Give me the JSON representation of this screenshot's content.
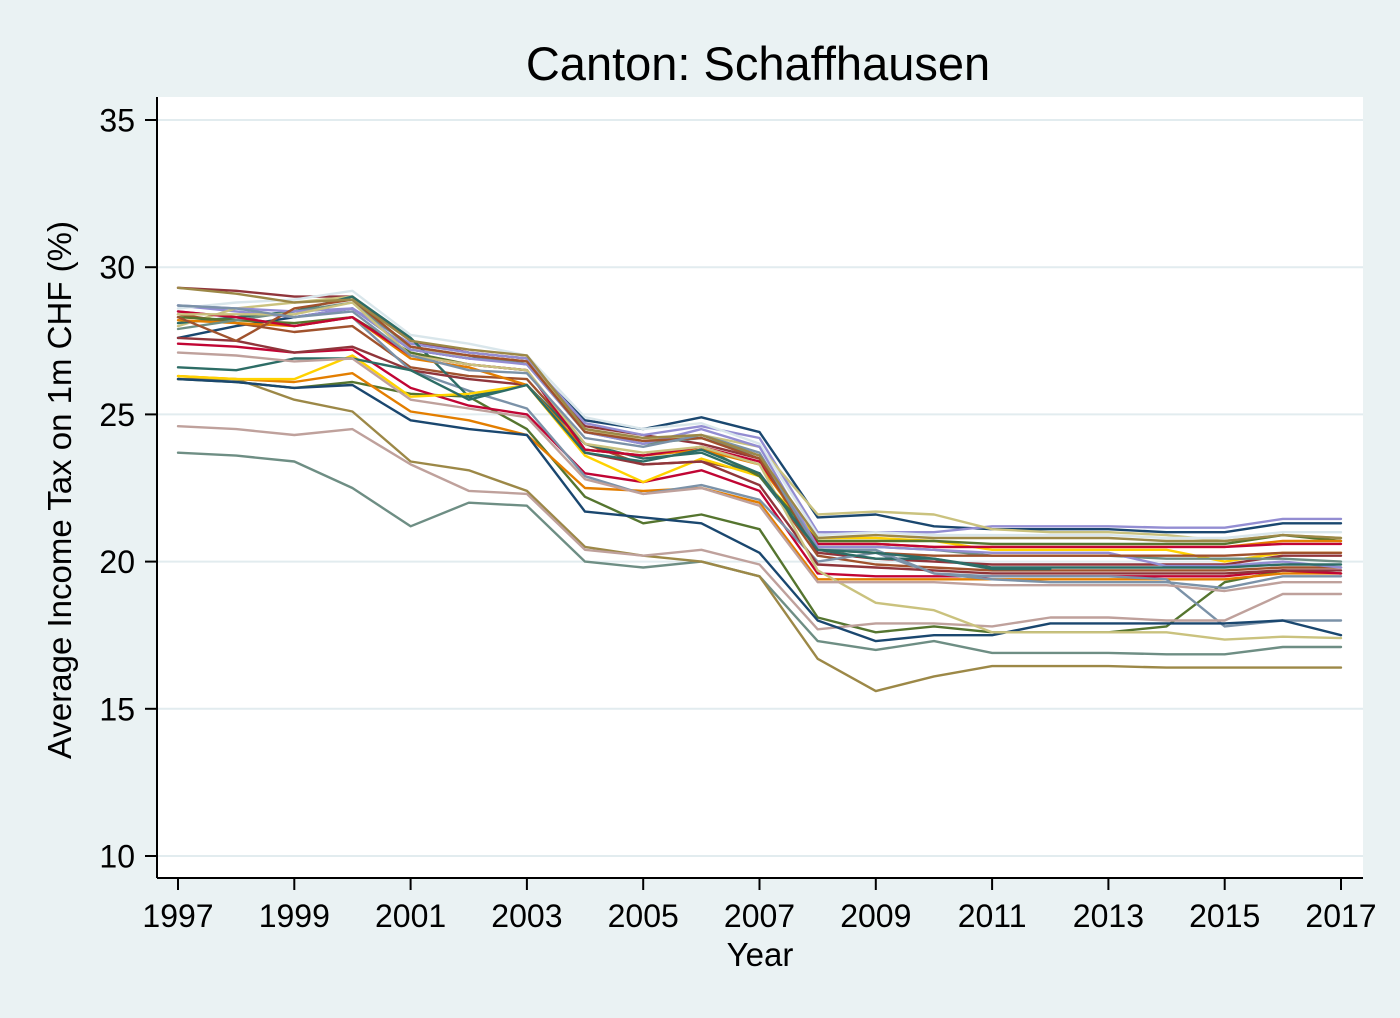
{
  "colors": {
    "graph_background": "#eaf2f3",
    "plot_background": "#ffffff",
    "title": "#1a476f",
    "gridline": "#e2ecef",
    "axis": "#000000"
  },
  "chart_data": {
    "type": "line",
    "title": "Canton: Schaffhausen",
    "xlabel": "Year",
    "ylabel": "Average Income Tax on 1m CHF (%)",
    "xlim": [
      1997,
      2017
    ],
    "ylim": [
      10,
      35
    ],
    "xticks": [
      1997,
      1999,
      2001,
      2003,
      2005,
      2007,
      2009,
      2011,
      2013,
      2015,
      2017
    ],
    "yticks": [
      10,
      15,
      20,
      25,
      30,
      35
    ],
    "grid": true,
    "legend": "none",
    "x": [
      1997,
      1998,
      1999,
      2000,
      2001,
      2002,
      2003,
      2004,
      2005,
      2006,
      2007,
      2008,
      2009,
      2010,
      2011,
      2012,
      2013,
      2014,
      2015,
      2016,
      2017
    ],
    "series": [
      {
        "color": "#1a476f",
        "values": [
          27.6,
          28.0,
          28.3,
          28.6,
          27.2,
          26.9,
          26.8,
          24.8,
          24.5,
          24.9,
          24.4,
          21.5,
          21.6,
          21.2,
          21.1,
          21.1,
          21.1,
          21.0,
          21.0,
          21.3,
          21.3
        ]
      },
      {
        "color": "#90353b",
        "values": [
          29.3,
          29.2,
          29.0,
          29.0,
          27.5,
          27.1,
          26.9,
          24.6,
          24.3,
          24.0,
          23.5,
          20.3,
          20.1,
          20.0,
          19.9,
          19.9,
          19.9,
          19.9,
          19.9,
          20.2,
          20.2
        ]
      },
      {
        "color": "#55752f",
        "values": [
          26.2,
          26.1,
          25.9,
          26.1,
          25.7,
          25.6,
          24.5,
          22.2,
          21.3,
          21.6,
          21.1,
          18.1,
          17.6,
          17.8,
          17.6,
          17.6,
          17.6,
          17.8,
          19.3,
          19.7,
          19.6
        ]
      },
      {
        "color": "#e37e00",
        "values": [
          26.3,
          26.2,
          26.1,
          26.4,
          25.1,
          24.8,
          24.3,
          22.5,
          22.4,
          22.5,
          22.0,
          19.4,
          19.4,
          19.4,
          19.4,
          19.4,
          19.4,
          19.4,
          19.4,
          19.6,
          19.6
        ]
      },
      {
        "color": "#6e8e84",
        "values": [
          23.7,
          23.6,
          23.4,
          22.5,
          21.2,
          22.0,
          21.9,
          20.0,
          19.8,
          20.0,
          19.5,
          17.3,
          17.0,
          17.3,
          16.9,
          16.9,
          16.9,
          16.85,
          16.85,
          17.1,
          17.1
        ]
      },
      {
        "color": "#c10534",
        "values": [
          27.4,
          27.3,
          27.1,
          27.2,
          25.9,
          25.3,
          25.0,
          23.0,
          22.7,
          23.1,
          22.4,
          19.6,
          19.5,
          19.5,
          19.5,
          19.5,
          19.5,
          19.5,
          19.5,
          19.7,
          19.6
        ]
      },
      {
        "color": "#938dd2",
        "values": [
          28.7,
          28.5,
          28.3,
          28.6,
          27.4,
          27.1,
          26.9,
          24.7,
          24.3,
          24.6,
          24.2,
          21.0,
          21.0,
          21.0,
          21.2,
          21.2,
          21.2,
          21.15,
          21.15,
          21.45,
          21.45
        ]
      },
      {
        "color": "#cac27e",
        "values": [
          28.0,
          28.6,
          28.8,
          29.0,
          27.2,
          27.0,
          26.8,
          24.5,
          24.1,
          24.3,
          23.9,
          21.6,
          21.7,
          21.6,
          21.1,
          21.0,
          21.0,
          20.9,
          20.7,
          20.9,
          20.8
        ]
      },
      {
        "color": "#a0522d",
        "values": [
          28.4,
          28.1,
          27.8,
          28.0,
          26.6,
          26.3,
          26.2,
          24.0,
          23.3,
          23.4,
          23.0,
          20.2,
          19.9,
          19.8,
          19.7,
          19.7,
          19.7,
          19.7,
          19.7,
          19.8,
          19.8
        ]
      },
      {
        "color": "#7b92a8",
        "values": [
          28.5,
          28.3,
          28.0,
          28.3,
          26.5,
          25.8,
          25.2,
          22.9,
          22.3,
          22.6,
          22.1,
          20.0,
          20.3,
          19.6,
          19.5,
          19.5,
          19.5,
          19.4,
          17.8,
          18.0,
          18.0
        ]
      },
      {
        "color": "#2d6d66",
        "values": [
          28.1,
          28.3,
          28.5,
          29.0,
          27.6,
          25.6,
          26.0,
          24.0,
          23.5,
          23.7,
          22.9,
          20.4,
          20.1,
          20.1,
          19.75,
          19.75,
          null,
          null,
          null,
          null,
          null
        ]
      },
      {
        "color": "#9c8847",
        "values": [
          26.2,
          26.2,
          25.5,
          25.1,
          23.4,
          23.1,
          22.4,
          20.5,
          20.2,
          20.0,
          19.5,
          16.7,
          15.6,
          16.1,
          16.45,
          16.45,
          16.45,
          16.4,
          16.4,
          16.4,
          16.4
        ]
      },
      {
        "color": "#bfa19c",
        "values": [
          24.6,
          24.5,
          24.3,
          24.5,
          23.3,
          22.4,
          22.3,
          20.4,
          20.2,
          20.4,
          19.9,
          17.7,
          17.9,
          17.9,
          17.8,
          18.1,
          18.1,
          18.0,
          18.0,
          18.9,
          18.9
        ]
      },
      {
        "color": "#ffd200",
        "values": [
          26.3,
          26.2,
          26.2,
          27.0,
          25.6,
          25.7,
          26.0,
          23.6,
          22.7,
          23.5,
          22.9,
          20.8,
          20.8,
          20.7,
          20.4,
          20.4,
          20.4,
          20.4,
          20.0,
          20.3,
          20.3
        ]
      },
      {
        "color": "#d9e6eb",
        "values": [
          28.6,
          28.8,
          28.9,
          29.2,
          27.7,
          27.4,
          27.0,
          24.9,
          24.5,
          24.7,
          24.0,
          20.9,
          21.0,
          20.9,
          20.9,
          20.9,
          20.9,
          20.8,
          20.8,
          21.0,
          21.0
        ]
      },
      {
        "color": "#1a476f",
        "values": [
          26.2,
          26.1,
          25.9,
          26.0,
          24.8,
          24.5,
          24.3,
          21.7,
          21.5,
          21.3,
          20.3,
          18.0,
          17.3,
          17.5,
          17.5,
          17.9,
          17.9,
          17.9,
          17.9,
          18.0,
          17.5
        ]
      },
      {
        "color": "#90353b",
        "values": [
          27.6,
          27.5,
          27.1,
          27.3,
          26.5,
          26.2,
          26.0,
          23.7,
          23.3,
          23.4,
          22.6,
          19.9,
          19.8,
          19.7,
          19.6,
          19.6,
          19.6,
          19.6,
          19.6,
          19.7,
          19.7
        ]
      },
      {
        "color": "#55752f",
        "values": [
          28.3,
          28.2,
          28.1,
          28.3,
          27.1,
          26.7,
          26.5,
          23.8,
          23.6,
          23.9,
          22.9,
          20.7,
          20.7,
          20.7,
          20.6,
          20.6,
          20.6,
          20.6,
          20.6,
          20.9,
          20.7
        ]
      },
      {
        "color": "#e37e00",
        "values": [
          28.2,
          28.1,
          28.0,
          28.3,
          26.9,
          26.6,
          26.0,
          23.8,
          23.6,
          23.8,
          23.3,
          20.6,
          20.6,
          20.5,
          20.5,
          20.5,
          20.5,
          20.5,
          20.5,
          20.7,
          20.7
        ]
      },
      {
        "color": "#6e8e84",
        "values": [
          27.9,
          28.2,
          28.5,
          28.8,
          27.3,
          27.0,
          26.7,
          24.4,
          24.0,
          24.2,
          23.6,
          20.5,
          20.5,
          20.4,
          20.2,
          20.2,
          20.2,
          20.1,
          20.1,
          20.1,
          20.0
        ]
      },
      {
        "color": "#c10534",
        "values": [
          28.5,
          28.3,
          28.0,
          28.3,
          27.0,
          26.7,
          26.5,
          23.8,
          23.6,
          23.9,
          23.4,
          20.6,
          20.6,
          20.5,
          20.5,
          20.5,
          20.5,
          20.5,
          20.5,
          20.6,
          20.6
        ]
      },
      {
        "color": "#938dd2",
        "values": [
          28.7,
          28.6,
          28.5,
          28.6,
          27.2,
          26.9,
          26.7,
          24.4,
          24.0,
          24.5,
          23.9,
          20.5,
          20.5,
          20.4,
          20.3,
          20.3,
          20.3,
          19.85,
          19.85,
          20.0,
          19.8
        ]
      },
      {
        "color": "#cac27e",
        "values": [
          28.4,
          28.4,
          28.4,
          28.8,
          27.0,
          26.7,
          26.5,
          24.0,
          23.7,
          23.9,
          23.3,
          19.7,
          18.6,
          18.35,
          17.6,
          17.6,
          17.6,
          17.6,
          17.35,
          17.45,
          17.4
        ]
      },
      {
        "color": "#a0522d",
        "values": [
          28.3,
          27.5,
          28.6,
          28.9,
          27.3,
          27.0,
          26.8,
          24.4,
          24.1,
          24.2,
          23.5,
          20.4,
          20.3,
          20.2,
          20.2,
          20.2,
          20.2,
          20.2,
          20.2,
          20.3,
          20.3
        ]
      },
      {
        "color": "#7b92a8",
        "values": [
          28.7,
          28.6,
          28.3,
          28.5,
          27.0,
          26.5,
          26.4,
          24.2,
          23.9,
          24.3,
          23.7,
          20.4,
          20.4,
          19.6,
          19.4,
          19.3,
          19.3,
          19.3,
          19.1,
          19.5,
          19.5
        ]
      },
      {
        "color": "#2d6d66",
        "values": [
          26.6,
          26.5,
          26.9,
          26.9,
          26.5,
          25.5,
          26.0,
          23.7,
          23.4,
          23.8,
          23.0,
          20.4,
          20.3,
          20.1,
          19.8,
          19.8,
          19.8,
          19.8,
          19.8,
          19.9,
          19.9
        ]
      },
      {
        "color": "#9c8847",
        "values": [
          29.3,
          29.1,
          28.8,
          28.9,
          27.5,
          27.2,
          27.0,
          24.5,
          24.2,
          24.3,
          23.6,
          20.8,
          20.9,
          20.8,
          20.8,
          20.8,
          20.8,
          20.7,
          20.7,
          20.9,
          20.8
        ]
      },
      {
        "color": "#bfa19c",
        "values": [
          27.1,
          27.0,
          26.8,
          26.9,
          25.5,
          25.2,
          24.9,
          22.8,
          22.3,
          22.5,
          21.9,
          19.3,
          19.3,
          19.3,
          19.2,
          19.2,
          19.2,
          19.2,
          19.0,
          19.3,
          19.3
        ]
      }
    ]
  }
}
